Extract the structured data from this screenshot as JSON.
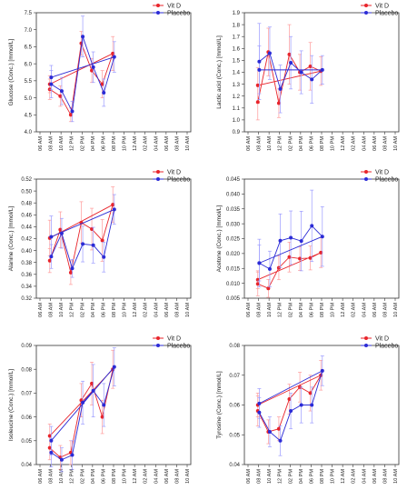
{
  "legend": {
    "vitd_label": "Vit D",
    "placebo_label": "Placebo"
  },
  "colors": {
    "vitd": "#e8242b",
    "placebo": "#2b2bd6",
    "error_vitd": "#ff9a9a",
    "error_placebo": "#9a9aff"
  },
  "time_ticks": [
    "06 AM",
    "08 AM",
    "10 AM",
    "12 PM",
    "02 PM",
    "04 PM",
    "06 PM",
    "08 PM",
    "10 PM",
    "12 AM",
    "02 AM",
    "04 AM",
    "06 AM",
    "08 AM",
    "10 AM"
  ],
  "chart_data": [
    {
      "type": "line",
      "ylabel": "Glucose (Conc.) [mmol/L]",
      "ylim": [
        4.0,
        7.5
      ],
      "yticks": [
        "4.0",
        "4.5",
        "5.0",
        "5.5",
        "6.0",
        "6.5",
        "7.0",
        "7.5"
      ],
      "legend_position": "top-right",
      "x": [
        "08 AM",
        "10 AM",
        "12 PM",
        "02 PM",
        "04 PM",
        "06 PM",
        "08 PM",
        "08 AM"
      ],
      "series": [
        {
          "name": "Vit D",
          "values": [
            5.25,
            5.05,
            4.5,
            6.6,
            5.8,
            5.4,
            6.3,
            5.4
          ],
          "errors": [
            0.3,
            0.3,
            0.2,
            0.35,
            0.35,
            0.4,
            0.5,
            0.25
          ]
        },
        {
          "name": "Placebo",
          "values": [
            5.4,
            5.2,
            4.6,
            6.8,
            5.9,
            5.15,
            6.2,
            5.6
          ],
          "errors": [
            0.4,
            0.4,
            0.3,
            0.6,
            0.45,
            0.4,
            0.45,
            0.35
          ]
        }
      ]
    },
    {
      "type": "line",
      "ylabel": "Lactic acid (Conc.) [mmol/L]",
      "ylim": [
        0.9,
        1.9
      ],
      "yticks": [
        "0.9",
        "1.0",
        "1.1",
        "1.2",
        "1.3",
        "1.4",
        "1.5",
        "1.6",
        "1.7",
        "1.8",
        "1.9"
      ],
      "legend_position": "top-right",
      "x": [
        "08 AM",
        "10 AM",
        "12 PM",
        "02 PM",
        "04 PM",
        "06 PM",
        "08 PM",
        "08 AM"
      ],
      "series": [
        {
          "name": "Vit D",
          "values": [
            1.15,
            1.57,
            1.14,
            1.55,
            1.4,
            1.45,
            1.41,
            1.29
          ],
          "errors": [
            0.15,
            0.2,
            0.12,
            0.25,
            0.15,
            0.2,
            0.12,
            0.15
          ]
        },
        {
          "name": "Placebo",
          "values": [
            1.49,
            1.56,
            1.26,
            1.48,
            1.4,
            1.34,
            1.42,
            1.42
          ],
          "errors": [
            0.32,
            0.22,
            0.2,
            0.22,
            0.18,
            0.2,
            0.12,
            0.2
          ]
        }
      ]
    },
    {
      "type": "line",
      "ylabel": "Alanine (Conc.) [mmol/L]",
      "ylim": [
        0.32,
        0.52
      ],
      "yticks": [
        "0.32",
        "0.34",
        "0.36",
        "0.38",
        "0.40",
        "0.42",
        "0.44",
        "0.46",
        "0.48",
        "0.50",
        "0.52"
      ],
      "legend_position": "top-right",
      "x": [
        "08 AM",
        "10 AM",
        "12 PM",
        "02 PM",
        "04 PM",
        "06 PM",
        "08 PM",
        "08 AM"
      ],
      "series": [
        {
          "name": "Vit D",
          "values": [
            0.383,
            0.435,
            0.363,
            0.447,
            0.436,
            0.417,
            0.477,
            0.421
          ],
          "errors": [
            0.02,
            0.03,
            0.02,
            0.035,
            0.035,
            0.035,
            0.03,
            0.03
          ]
        },
        {
          "name": "Placebo",
          "values": [
            0.39,
            0.429,
            0.37,
            0.411,
            0.409,
            0.389,
            0.469,
            0.423
          ],
          "errors": [
            0.02,
            0.025,
            0.015,
            0.03,
            0.03,
            0.025,
            0.025,
            0.035
          ]
        }
      ]
    },
    {
      "type": "line",
      "ylabel": "Acetone (Conc.) [mmol/L]",
      "ylim": [
        0.005,
        0.045
      ],
      "yticks": [
        "0.005",
        "0.010",
        "0.015",
        "0.020",
        "0.025",
        "0.030",
        "0.035",
        "0.040",
        "0.045"
      ],
      "legend_position": "top-right",
      "x": [
        "08 AM",
        "10 AM",
        "12 PM",
        "02 PM",
        "04 PM",
        "06 PM",
        "08 PM",
        "08 AM"
      ],
      "series": [
        {
          "name": "Vit D",
          "values": [
            0.0098,
            0.0083,
            0.0152,
            0.0188,
            0.0183,
            0.0185,
            0.0203,
            0.0112
          ],
          "errors": [
            0.004,
            0.003,
            0.004,
            0.005,
            0.004,
            0.004,
            0.005,
            0.003
          ]
        },
        {
          "name": "Placebo",
          "values": [
            0.0168,
            0.0148,
            0.0243,
            0.0253,
            0.0242,
            0.0293,
            0.0257,
            0.0168
          ],
          "errors": [
            0.008,
            0.006,
            0.009,
            0.009,
            0.01,
            0.012,
            0.01,
            0.006
          ]
        }
      ]
    },
    {
      "type": "line",
      "ylabel": "Isoleucine (Conc.) [mmol/L]",
      "ylim": [
        0.04,
        0.09
      ],
      "yticks": [
        "0.04",
        "0.05",
        "0.06",
        "0.07",
        "0.08",
        "0.09"
      ],
      "legend_position": "top-right",
      "x": [
        "08 AM",
        "10 AM",
        "12 PM",
        "02 PM",
        "04 PM",
        "06 PM",
        "08 PM",
        "08 AM"
      ],
      "series": [
        {
          "name": "Vit D",
          "values": [
            0.047,
            0.043,
            0.045,
            0.067,
            0.074,
            0.06,
            0.08,
            0.052
          ],
          "errors": [
            0.005,
            0.005,
            0.005,
            0.007,
            0.009,
            0.007,
            0.008,
            0.005
          ]
        },
        {
          "name": "Placebo",
          "values": [
            0.045,
            0.042,
            0.044,
            0.066,
            0.071,
            0.065,
            0.081,
            0.05
          ],
          "errors": [
            0.006,
            0.005,
            0.006,
            0.009,
            0.011,
            0.009,
            0.008,
            0.006
          ]
        }
      ]
    },
    {
      "type": "line",
      "ylabel": "Tyrosine (Conc.) [mmol/L]",
      "ylim": [
        0.04,
        0.08
      ],
      "yticks": [
        "0.04",
        "0.05",
        "0.06",
        "0.07",
        "0.08"
      ],
      "legend_position": "top-right",
      "x": [
        "08 AM",
        "10 AM",
        "12 PM",
        "02 PM",
        "04 PM",
        "06 PM",
        "08 PM",
        "08 AM"
      ],
      "series": [
        {
          "name": "Vit D",
          "values": [
            0.058,
            0.051,
            0.052,
            0.062,
            0.066,
            0.064,
            0.07,
            0.06
          ],
          "errors": [
            0.005,
            0.004,
            0.004,
            0.005,
            0.005,
            0.006,
            0.005,
            0.004
          ]
        },
        {
          "name": "Placebo",
          "values": [
            0.0575,
            0.051,
            0.048,
            0.058,
            0.06,
            0.06,
            0.0715,
            0.0605
          ],
          "errors": [
            0.005,
            0.005,
            0.005,
            0.006,
            0.006,
            0.006,
            0.005,
            0.005
          ]
        }
      ]
    }
  ]
}
